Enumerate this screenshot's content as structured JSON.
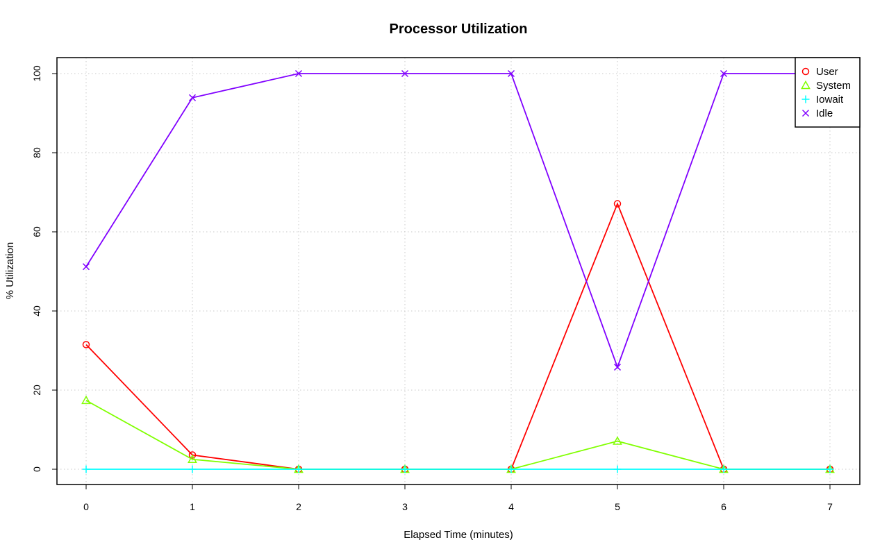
{
  "chart_data": {
    "type": "line",
    "title": "Processor Utilization",
    "xlabel": "Elapsed Time (minutes)",
    "ylabel": "% Utilization",
    "x": [
      0,
      1,
      2,
      3,
      4,
      5,
      6,
      7
    ],
    "xlim": [
      0,
      7
    ],
    "ylim": [
      0,
      100
    ],
    "xticks": [
      0,
      1,
      2,
      3,
      4,
      5,
      6,
      7
    ],
    "yticks": [
      0,
      20,
      40,
      60,
      80,
      100
    ],
    "grid": true,
    "legend_position": "top-right",
    "series": [
      {
        "name": "User",
        "color": "#ff0000",
        "marker": "circle",
        "values": [
          31.5,
          3.6,
          0,
          0,
          0,
          67.1,
          0,
          0
        ]
      },
      {
        "name": "System",
        "color": "#80ff00",
        "marker": "triangle",
        "values": [
          17.4,
          2.5,
          0,
          0,
          0,
          7.1,
          0,
          0
        ]
      },
      {
        "name": "Iowait",
        "color": "#00ffff",
        "marker": "plus",
        "values": [
          0,
          0,
          0,
          0,
          0,
          0,
          0,
          0
        ]
      },
      {
        "name": "Idle",
        "color": "#8000ff",
        "marker": "cross",
        "values": [
          51.2,
          93.9,
          100,
          100,
          100,
          25.8,
          100,
          100
        ]
      }
    ]
  }
}
